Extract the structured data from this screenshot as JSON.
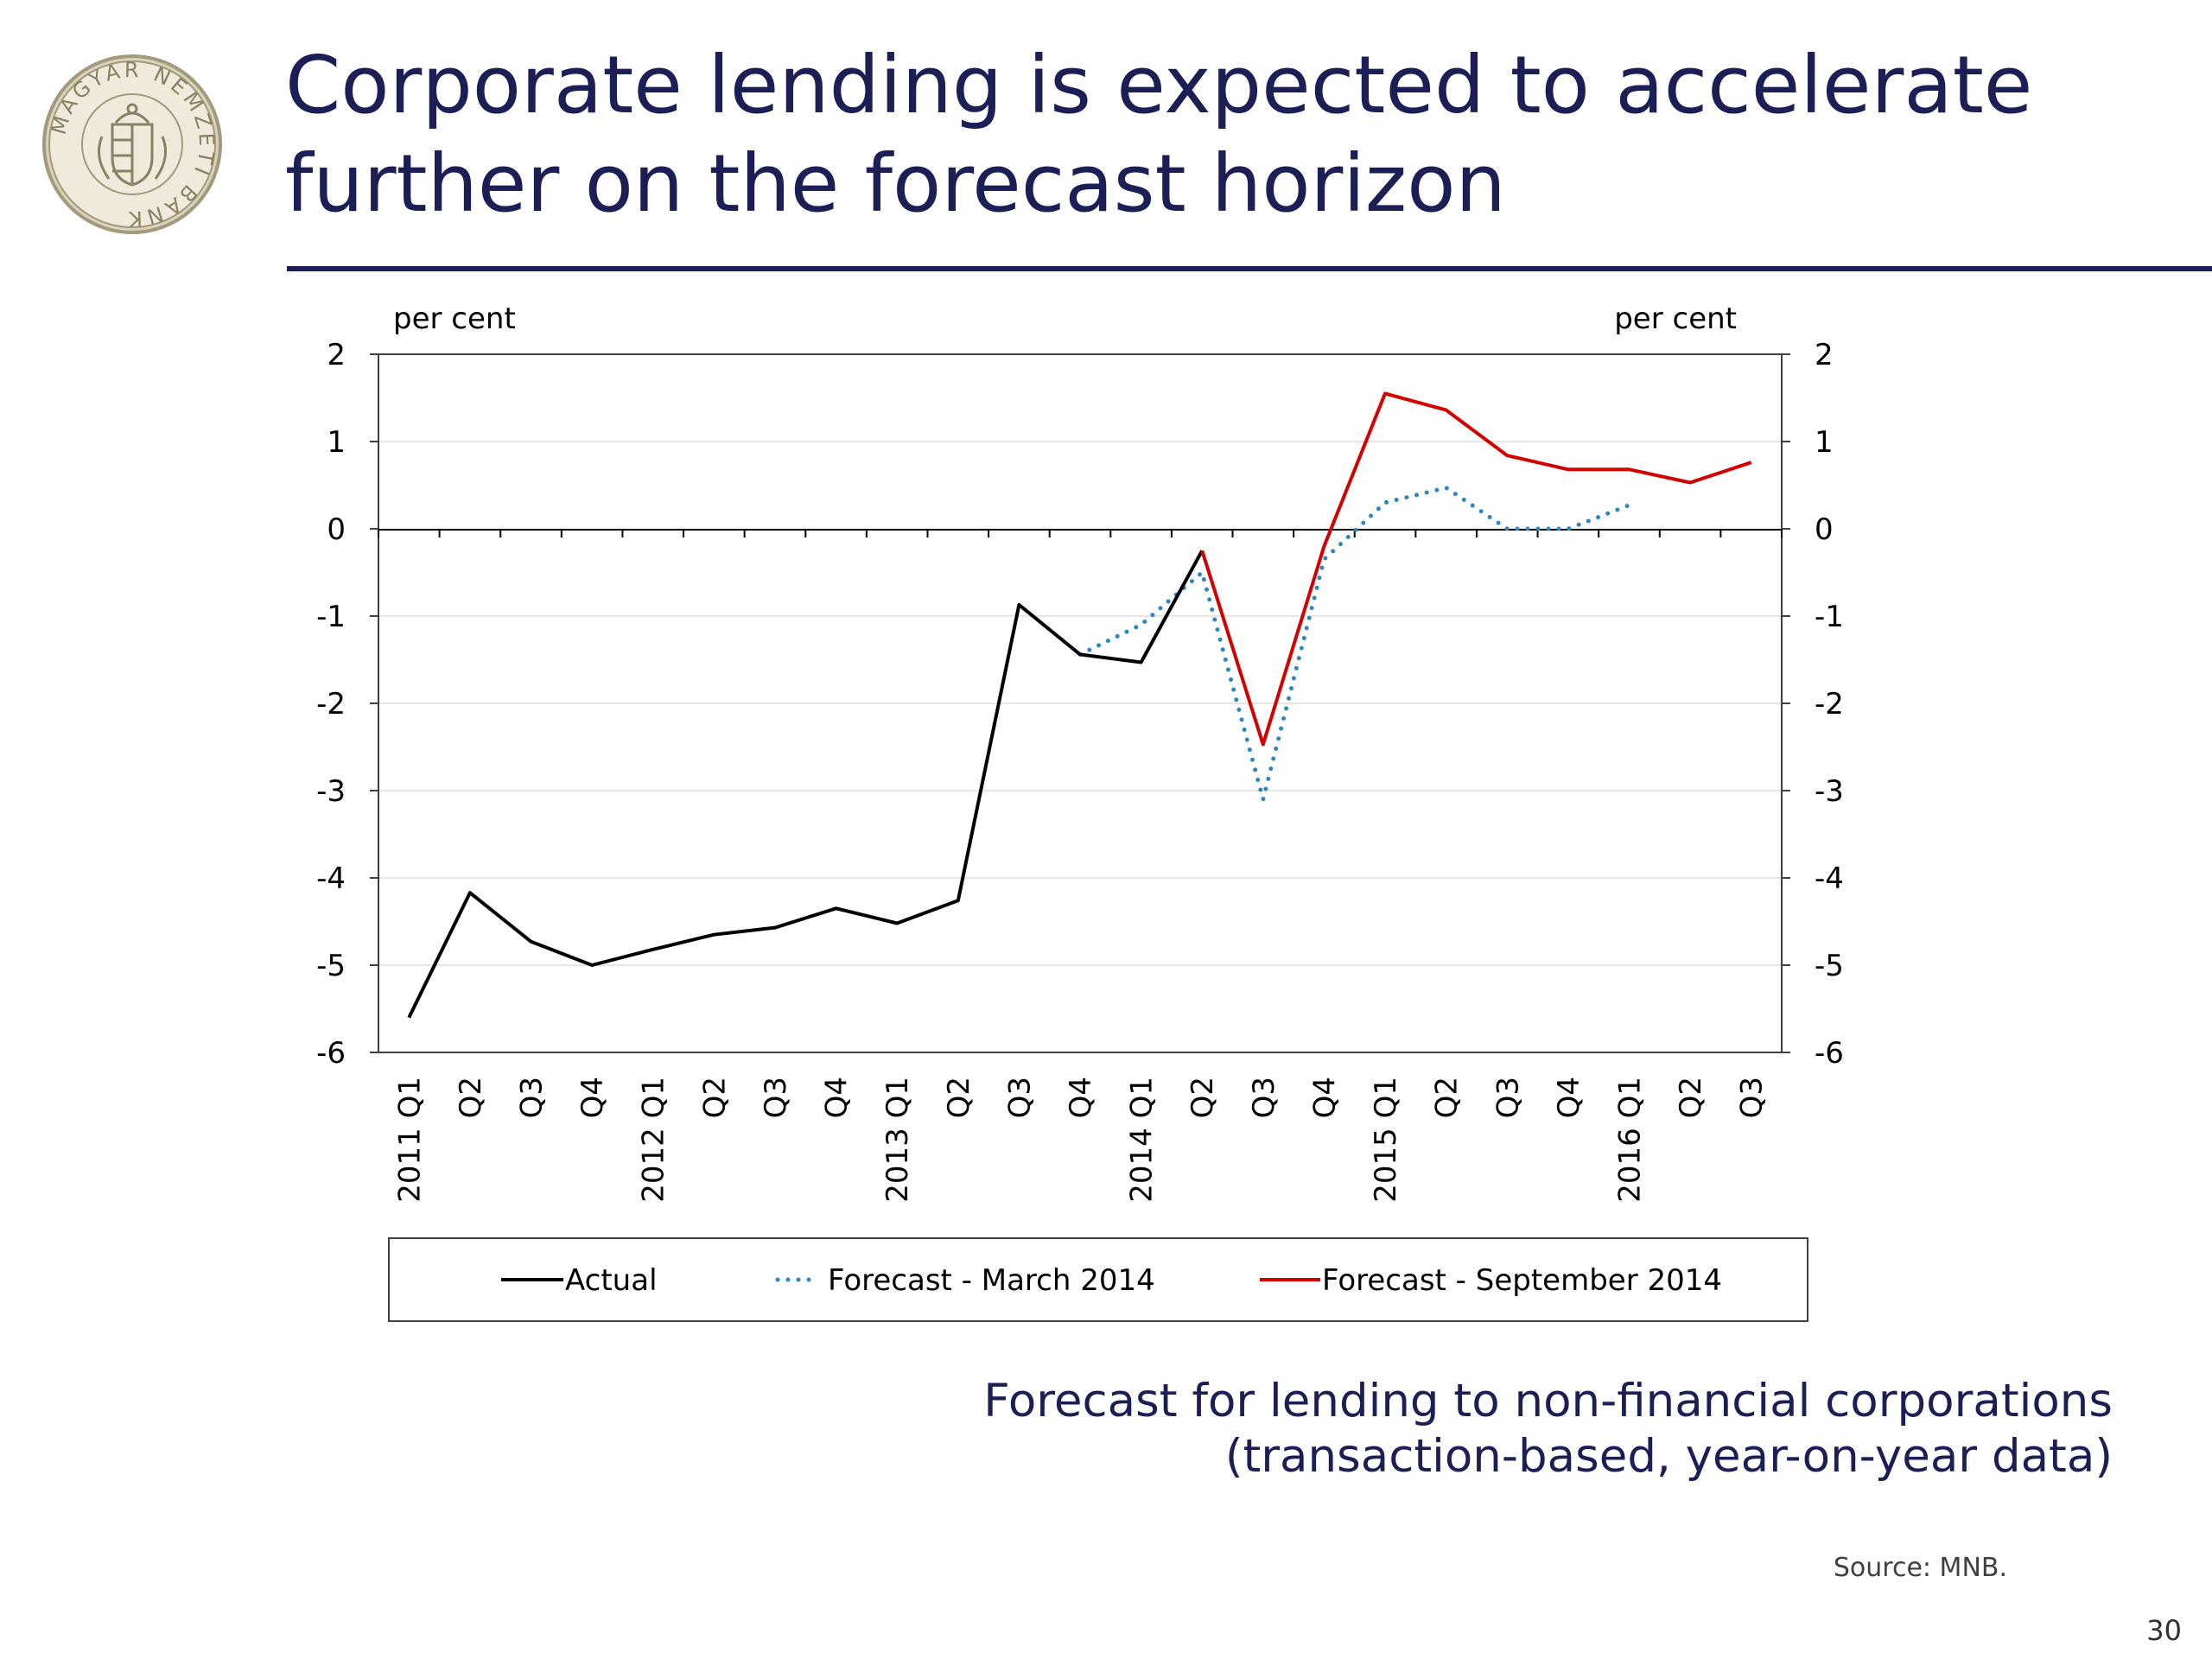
{
  "slide": {
    "title": "Corporate lending is expected to accelerate further on the forecast horizon",
    "caption_line1": "Forecast for lending to non-financial corporations",
    "caption_line2": "(transaction-based, year-on-year data)",
    "source": "Source: MNB.",
    "page_number": "30",
    "logo": {
      "icon": "magyar-nemzeti-bank-seal",
      "text": "MAGYAR NEMZETI BANK",
      "color": "#a39a7c"
    },
    "accent_color": "#1c1f55"
  },
  "chart_data": {
    "type": "line",
    "title": "",
    "ylabel_left": "per cent",
    "ylabel_right": "per cent",
    "ylim": [
      -6,
      2
    ],
    "yticks": [
      2,
      1,
      0,
      -1,
      -2,
      -3,
      -4,
      -5,
      -6
    ],
    "categories": [
      "2011 Q1",
      "Q2",
      "Q3",
      "Q4",
      "2012 Q1",
      "Q2",
      "Q3",
      "Q4",
      "2013 Q1",
      "Q2",
      "Q3",
      "Q4",
      "2014 Q1",
      "Q2",
      "Q3",
      "Q4",
      "2015 Q1",
      "Q2",
      "Q3",
      "Q4",
      "2016 Q1",
      "Q2",
      "Q3"
    ],
    "legend_position": "bottom",
    "grid": true,
    "series": [
      {
        "name": "Actual",
        "color": "#000000",
        "style": "solid",
        "values": [
          -5.6,
          -4.17,
          -4.73,
          -5.0,
          -4.82,
          -4.65,
          -4.57,
          -4.35,
          -4.52,
          -4.26,
          -0.87,
          -1.44,
          -1.53,
          -0.25,
          null,
          null,
          null,
          null,
          null,
          null,
          null,
          null,
          null
        ]
      },
      {
        "name": "Forecast - March 2014",
        "color": "#2e86c1",
        "style": "dotted",
        "values": [
          null,
          null,
          null,
          null,
          null,
          null,
          null,
          null,
          null,
          null,
          null,
          -1.44,
          -1.1,
          -0.5,
          -3.1,
          -0.35,
          0.3,
          0.47,
          0.0,
          0.0,
          0.27,
          null,
          null
        ]
      },
      {
        "name": "Forecast - September 2014",
        "color": "#d40000",
        "style": "solid",
        "values": [
          null,
          null,
          null,
          null,
          null,
          null,
          null,
          null,
          null,
          null,
          null,
          null,
          null,
          -0.25,
          -2.47,
          -0.2,
          1.55,
          1.36,
          0.84,
          0.68,
          0.68,
          0.53,
          0.76
        ]
      }
    ]
  }
}
